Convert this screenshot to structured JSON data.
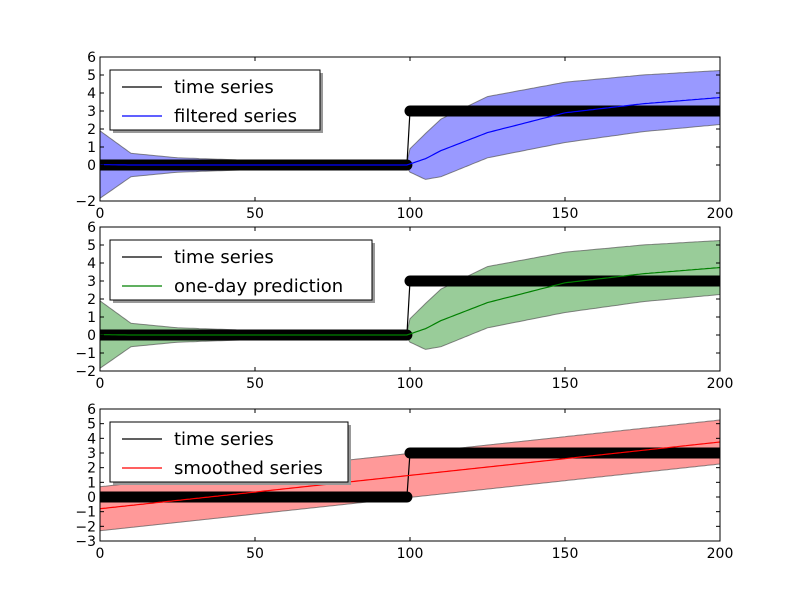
{
  "chart_data": [
    {
      "type": "line",
      "xlim": [
        0,
        200
      ],
      "ylim": [
        -2,
        6
      ],
      "xticks": [
        "0",
        "50",
        "100",
        "150",
        "200"
      ],
      "yticks": [
        "6",
        "5",
        "4",
        "3",
        "2",
        "1",
        "0",
        "−2"
      ],
      "grid": false,
      "legend_position": "top-left",
      "series": [
        {
          "name": "time series",
          "color": "#000000",
          "marker": "circle",
          "segments": [
            {
              "x_range": [
                0,
                99
              ],
              "y": 0
            },
            {
              "x_range": [
                100,
                200
              ],
              "y": 3
            }
          ]
        },
        {
          "name": "filtered series",
          "color": "#0000ff",
          "band_color": "#9999ff",
          "x": [
            0,
            10,
            25,
            50,
            75,
            99,
            100,
            105,
            110,
            125,
            150,
            175,
            200
          ],
          "values": [
            0.02,
            0.0,
            0.0,
            0.0,
            0.0,
            0.0,
            0.06,
            0.35,
            0.8,
            1.8,
            2.9,
            3.4,
            3.75
          ],
          "upper": [
            1.9,
            0.65,
            0.4,
            0.25,
            0.17,
            0.12,
            0.9,
            1.75,
            2.55,
            3.8,
            4.6,
            5.0,
            5.25
          ],
          "lower": [
            -1.85,
            -0.65,
            -0.4,
            -0.25,
            -0.17,
            -0.12,
            -0.4,
            -0.8,
            -0.65,
            0.4,
            1.25,
            1.85,
            2.25
          ]
        }
      ]
    },
    {
      "type": "line",
      "xlim": [
        0,
        200
      ],
      "ylim": [
        -2,
        6
      ],
      "xticks": [
        "0",
        "50",
        "100",
        "150",
        "200"
      ],
      "yticks": [
        "6",
        "5",
        "4",
        "3",
        "2",
        "1",
        "0",
        "−1",
        "−2"
      ],
      "grid": false,
      "legend_position": "top-left",
      "series": [
        {
          "name": "time series",
          "color": "#000000",
          "marker": "circle",
          "segments": [
            {
              "x_range": [
                0,
                99
              ],
              "y": 0
            },
            {
              "x_range": [
                100,
                200
              ],
              "y": 3
            }
          ]
        },
        {
          "name": "one-day prediction",
          "color": "#008000",
          "band_color": "#99cc99",
          "x": [
            0,
            10,
            25,
            50,
            75,
            99,
            100,
            105,
            110,
            125,
            150,
            175,
            200
          ],
          "values": [
            0.02,
            0.0,
            0.0,
            0.0,
            0.0,
            0.0,
            0.06,
            0.35,
            0.8,
            1.8,
            2.9,
            3.4,
            3.75
          ],
          "upper": [
            1.9,
            0.65,
            0.4,
            0.25,
            0.17,
            0.12,
            0.9,
            1.75,
            2.55,
            3.8,
            4.6,
            5.0,
            5.25
          ],
          "lower": [
            -1.85,
            -0.65,
            -0.4,
            -0.25,
            -0.17,
            -0.12,
            -0.4,
            -0.8,
            -0.65,
            0.4,
            1.25,
            1.85,
            2.25
          ]
        }
      ]
    },
    {
      "type": "line",
      "xlim": [
        0,
        200
      ],
      "ylim": [
        -3,
        6
      ],
      "xticks": [
        "0",
        "50",
        "100",
        "150",
        "200"
      ],
      "yticks": [
        "6",
        "5",
        "4",
        "3",
        "2",
        "1",
        "0",
        "−1",
        "−2",
        "−3"
      ],
      "grid": false,
      "legend_position": "top-left",
      "series": [
        {
          "name": "time series",
          "color": "#000000",
          "marker": "circle",
          "segments": [
            {
              "x_range": [
                0,
                99
              ],
              "y": 0
            },
            {
              "x_range": [
                100,
                200
              ],
              "y": 3
            }
          ]
        },
        {
          "name": "smoothed series",
          "color": "#ff0000",
          "band_color": "#ff9999",
          "x": [
            0,
            200
          ],
          "values": [
            -0.8,
            3.75
          ],
          "upper": [
            0.7,
            5.25
          ],
          "lower": [
            -2.3,
            2.25
          ]
        }
      ]
    }
  ]
}
